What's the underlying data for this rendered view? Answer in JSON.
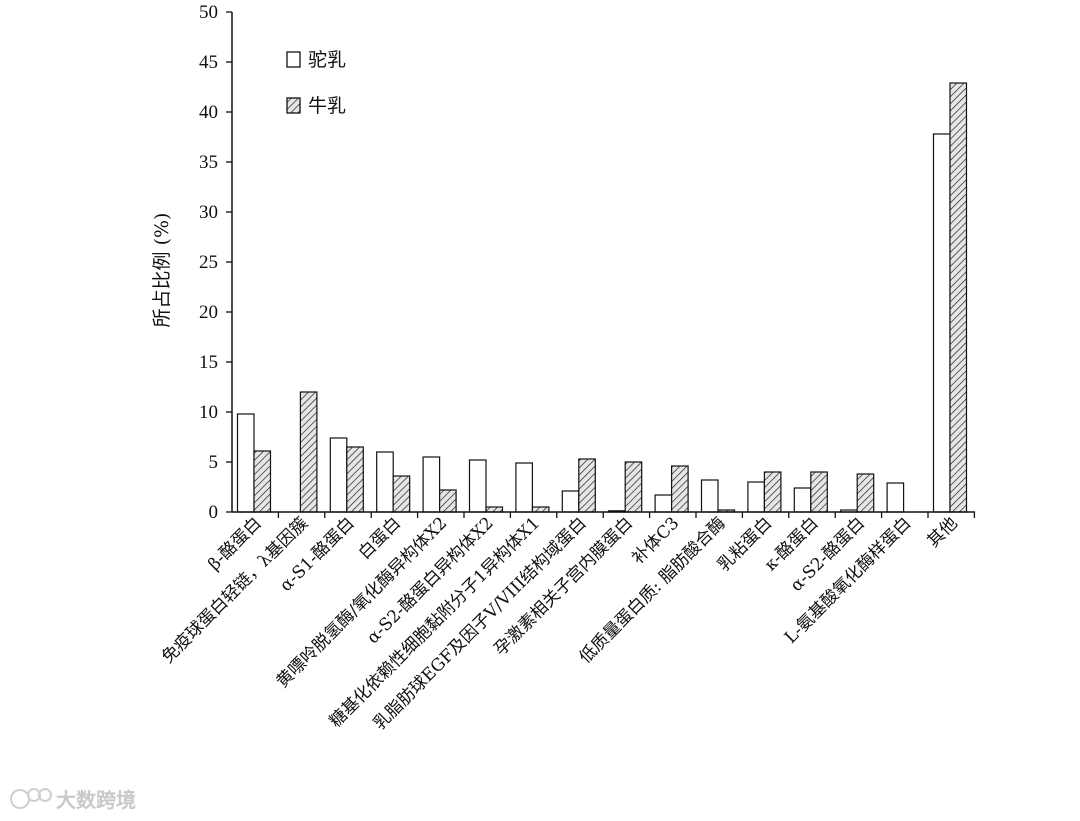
{
  "chart_data": {
    "type": "bar",
    "ylabel": "所占比例 (%)",
    "ylim": [
      0,
      50
    ],
    "yticks": [
      0,
      5,
      10,
      15,
      20,
      25,
      30,
      35,
      40,
      45,
      50
    ],
    "categories": [
      "β-酪蛋白",
      "免疫球蛋白轻链，λ基因簇",
      "α-S1-酪蛋白",
      "白蛋白",
      "黄嘌呤脱氢酶/氧化酶异构体X2",
      "α-S2-酪蛋白异构体X2",
      "糖基化依赖性细胞黏附分子1异构体X1",
      "乳脂肪球EGF及因子V/VIII结构域蛋白",
      "孕激素相关子宫内膜蛋白",
      "补体C3",
      "低质量蛋白质: 脂肪酸合酶",
      "乳粘蛋白",
      "κ-酪蛋白",
      "α-S2-酪蛋白",
      "L-氨基酸氧化酶样蛋白",
      "其他"
    ],
    "series": [
      {
        "name": "驼乳",
        "pattern": "white",
        "values": [
          9.8,
          0,
          7.4,
          6.0,
          5.5,
          5.2,
          4.9,
          2.1,
          0.1,
          1.7,
          3.2,
          3.0,
          2.4,
          0.2,
          2.9,
          37.8
        ]
      },
      {
        "name": "牛乳",
        "pattern": "hatched",
        "values": [
          6.1,
          12.0,
          6.5,
          3.6,
          2.2,
          0.5,
          0.5,
          5.3,
          5.0,
          4.6,
          0.2,
          4.0,
          4.0,
          3.8,
          0,
          42.9
        ]
      }
    ],
    "legend_position": "top-left",
    "grid": false
  },
  "watermark": {
    "text": "大数跨境",
    "icon": "watermark-logo-icon"
  }
}
